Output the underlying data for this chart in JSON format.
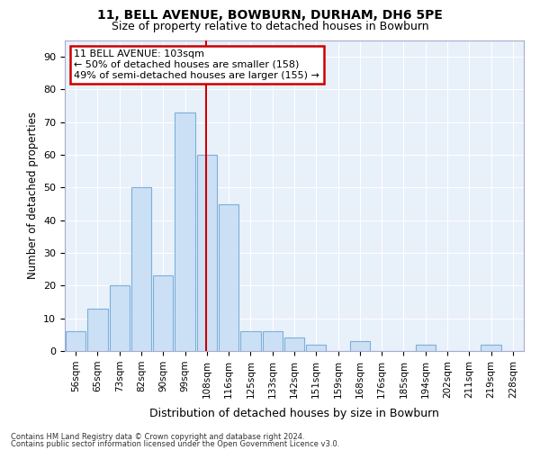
{
  "title1": "11, BELL AVENUE, BOWBURN, DURHAM, DH6 5PE",
  "title2": "Size of property relative to detached houses in Bowburn",
  "xlabel": "Distribution of detached houses by size in Bowburn",
  "ylabel": "Number of detached properties",
  "bar_color": "#cce0f5",
  "bar_edge_color": "#7ab0d8",
  "bin_labels": [
    "56sqm",
    "65sqm",
    "73sqm",
    "82sqm",
    "90sqm",
    "99sqm",
    "108sqm",
    "116sqm",
    "125sqm",
    "133sqm",
    "142sqm",
    "151sqm",
    "159sqm",
    "168sqm",
    "176sqm",
    "185sqm",
    "194sqm",
    "202sqm",
    "211sqm",
    "219sqm",
    "228sqm"
  ],
  "bar_heights": [
    6,
    13,
    20,
    50,
    23,
    73,
    60,
    45,
    6,
    6,
    4,
    2,
    0,
    3,
    0,
    0,
    2,
    0,
    0,
    2,
    0
  ],
  "ylim": [
    0,
    95
  ],
  "yticks": [
    0,
    10,
    20,
    30,
    40,
    50,
    60,
    70,
    80,
    90
  ],
  "vline_x": 5.97,
  "vline_color": "#cc0000",
  "annotation_text": "11 BELL AVENUE: 103sqm\n← 50% of detached houses are smaller (158)\n49% of semi-detached houses are larger (155) →",
  "annotation_box_color": "#ffffff",
  "annotation_box_edge": "#cc0000",
  "footer1": "Contains HM Land Registry data © Crown copyright and database right 2024.",
  "footer2": "Contains public sector information licensed under the Open Government Licence v3.0.",
  "background_color": "#ffffff",
  "plot_bg_color": "#e8f0fa",
  "grid_color": "#ffffff",
  "figsize": [
    6.0,
    5.0
  ],
  "dpi": 100
}
